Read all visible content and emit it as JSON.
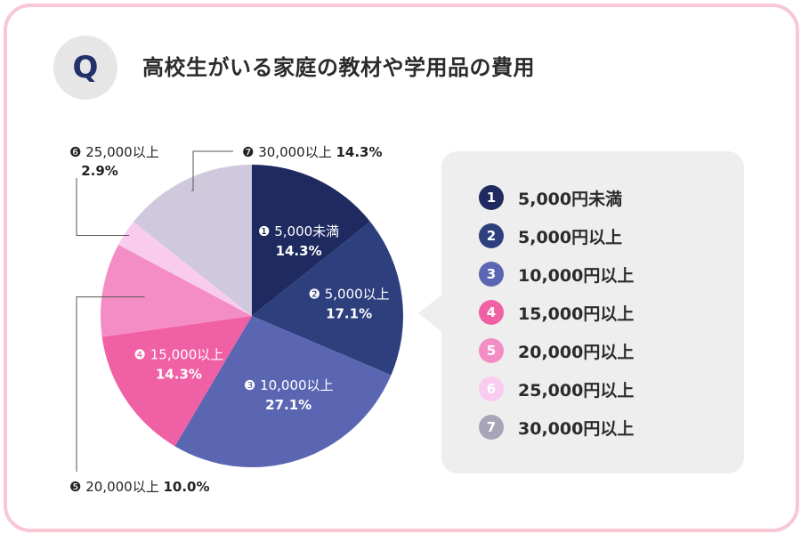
{
  "question": {
    "badge": "Q",
    "title": "高校生がいる家庭の教材や学用品の費用"
  },
  "chart_data": {
    "type": "pie",
    "title": "高校生がいる家庭の教材や学用品の費用",
    "start_angle_deg": 0,
    "direction": "clockwise",
    "slices": [
      {
        "num": "1",
        "marker": "❶",
        "label": "5,000円未満",
        "chart_label": "5,000未満",
        "value": 14.3,
        "value_text": "14.3%",
        "color": "#1f2a60",
        "label_text_color": "#ffffff"
      },
      {
        "num": "2",
        "marker": "❷",
        "label": "5,000円以上",
        "chart_label": "5,000以上",
        "value": 17.1,
        "value_text": "17.1%",
        "color": "#2e3f7e",
        "label_text_color": "#ffffff"
      },
      {
        "num": "3",
        "marker": "❸",
        "label": "10,000円以上",
        "chart_label": "10,000以上",
        "value": 27.1,
        "value_text": "27.1%",
        "color": "#5b66b3",
        "label_text_color": "#ffffff"
      },
      {
        "num": "4",
        "marker": "❹",
        "label": "15,000円以上",
        "chart_label": "15,000以上",
        "value": 14.3,
        "value_text": "14.3%",
        "color": "#f060a5",
        "label_text_color": "#ffffff"
      },
      {
        "num": "5",
        "marker": "❺",
        "label": "20,000円以上",
        "chart_label": "20,000以上",
        "value": 10.0,
        "value_text": "10.0%",
        "color": "#f48dc6",
        "label_text_color": "#222222"
      },
      {
        "num": "6",
        "marker": "❻",
        "label": "25,000円以上",
        "chart_label": "25,000以上",
        "value": 2.9,
        "value_text": "2.9%",
        "color": "#f9cbef",
        "label_text_color": "#222222"
      },
      {
        "num": "7",
        "marker": "❼",
        "label": "30,000円以上",
        "chart_label": "30,000以上",
        "value": 14.3,
        "value_text": "14.3%",
        "color": "#d0c8dc",
        "label_text_color": "#222222"
      }
    ]
  },
  "colors": {
    "frame": "#f9c7d3",
    "badge_bg": "#e6e6e6",
    "badge_text": "#23306a",
    "legend_bg": "#eeeeee",
    "legend_num_7": "#a9a3b8"
  }
}
